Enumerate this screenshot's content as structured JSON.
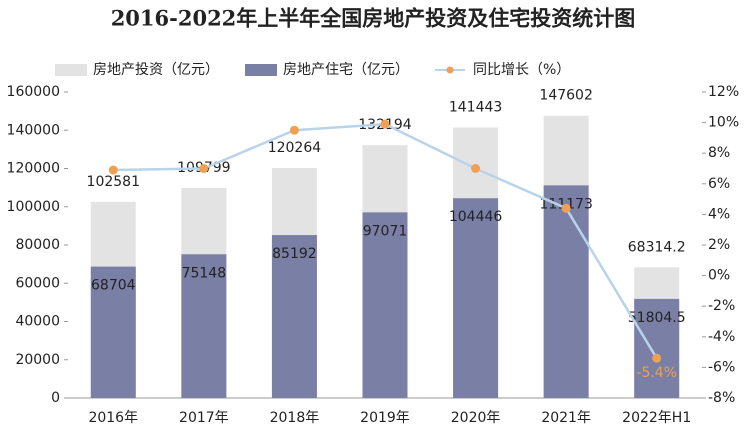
{
  "chart_data": {
    "type": "bar",
    "title": "2016-2022年上半年全国房地产投资及住宅投资统计图",
    "categories": [
      "2016年",
      "2017年",
      "2018年",
      "2019年",
      "2020年",
      "2021年",
      "2022年H1"
    ],
    "series": [
      {
        "name": "房地产投资（亿元）",
        "type": "bar",
        "color": "#e3e3e3",
        "values": [
          102581,
          109799,
          120264,
          132194,
          141443,
          147602,
          68314.2
        ]
      },
      {
        "name": "房地产住宅（亿元）",
        "type": "bar",
        "color": "#7a7fa6",
        "values": [
          68704,
          75148,
          85192,
          97071,
          104446,
          111173,
          51804.5
        ]
      },
      {
        "name": "同比增长（%）",
        "type": "line",
        "axis": "y2",
        "color": "#b9d3ea",
        "marker_color": "#f0a050",
        "values": [
          6.9,
          7.0,
          9.5,
          9.9,
          7.0,
          4.4,
          -5.4
        ],
        "value_labels": [
          null,
          null,
          null,
          null,
          null,
          null,
          "-5.4%"
        ]
      }
    ],
    "ylim": [
      0,
      160000
    ],
    "yticks": [
      0,
      20000,
      40000,
      60000,
      80000,
      100000,
      120000,
      140000,
      160000
    ],
    "y2lim": [
      -8,
      12
    ],
    "y2ticks": [
      {
        "value": -8,
        "label": "-8%"
      },
      {
        "value": -6,
        "label": "-6%"
      },
      {
        "value": -4,
        "label": "-4%"
      },
      {
        "value": -2,
        "label": "-2%"
      },
      {
        "value": 0,
        "label": "0%"
      },
      {
        "value": 2,
        "label": "2%"
      },
      {
        "value": 4,
        "label": "4%"
      },
      {
        "value": 6,
        "label": "6%"
      },
      {
        "value": 8,
        "label": "8%"
      },
      {
        "value": 10,
        "label": "10%"
      },
      {
        "value": 12,
        "label": "12%"
      }
    ],
    "grid": false,
    "legend": "top"
  }
}
